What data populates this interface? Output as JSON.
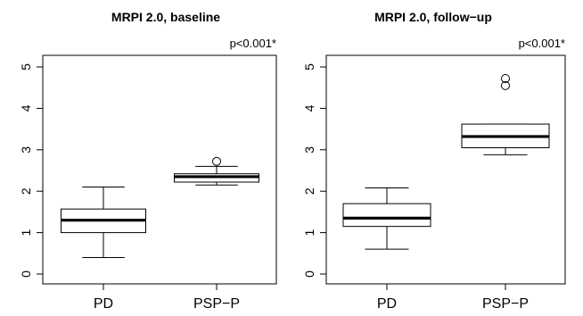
{
  "chart_data": [
    {
      "type": "box",
      "title": "MRPI 2.0, baseline",
      "annotation": "p<0.001*",
      "categories": [
        "PD",
        "PSP−P"
      ],
      "ylim": [
        0,
        5
      ],
      "yticks": [
        "0",
        "1",
        "2",
        "3",
        "4",
        "5"
      ],
      "boxes": [
        {
          "category": "PD",
          "min": 0.4,
          "q1": 1.0,
          "median": 1.3,
          "q3": 1.57,
          "max": 2.1,
          "outliers": []
        },
        {
          "category": "PSP−P",
          "min": 2.15,
          "q1": 2.22,
          "median": 2.35,
          "q3": 2.42,
          "max": 2.6,
          "outliers": [
            2.72
          ]
        }
      ]
    },
    {
      "type": "box",
      "title": "MRPI 2.0, follow−up",
      "annotation": "p<0.001*",
      "categories": [
        "PD",
        "PSP−P"
      ],
      "ylim": [
        0,
        5
      ],
      "yticks": [
        "0",
        "1",
        "2",
        "3",
        "4",
        "5"
      ],
      "boxes": [
        {
          "category": "PD",
          "min": 0.6,
          "q1": 1.15,
          "median": 1.35,
          "q3": 1.7,
          "max": 2.08,
          "outliers": []
        },
        {
          "category": "PSP−P",
          "min": 2.88,
          "q1": 3.05,
          "median": 3.32,
          "q3": 3.62,
          "max": 3.62,
          "outliers": [
            4.55,
            4.72
          ]
        }
      ]
    }
  ]
}
